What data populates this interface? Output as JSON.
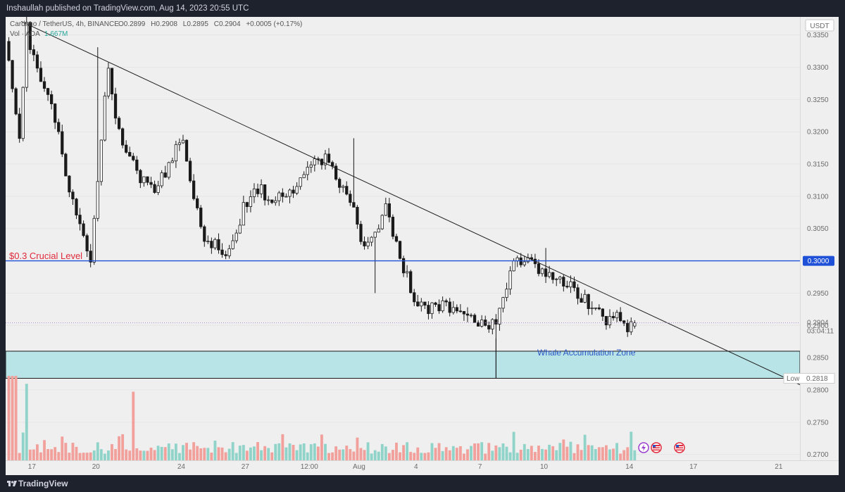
{
  "header": {
    "publish_line": "Inshaullah published on TradingView.com, Aug 14, 2023 20:55 UTC"
  },
  "footer": {
    "brand": "TradingView"
  },
  "legend": {
    "symbol": "Cardano / TetherUS, 4h, BINANCE",
    "o_label": "O",
    "o_value": "0.2899",
    "h_label": "H",
    "h_value": "0.2908",
    "l_label": "L",
    "l_value": "0.2895",
    "c_label": "C",
    "c_value": "0.2904",
    "change": "+0.0005 (+0.17%)",
    "volume_label": "Vol · ADA",
    "volume_value": "1.667M"
  },
  "currency": "USDT",
  "colors": {
    "up": "#ffffff",
    "down": "#1a1a1a",
    "vol_up": "#8fd3c9",
    "vol_down": "#f2a09b",
    "level": "#1e50d8",
    "level_text": "#e0293b",
    "zone_fill": "#b9e4e7",
    "zone_text": "#2a56c6",
    "trend": "#1f1f1f",
    "current": "#b08ccf"
  },
  "chart_data": {
    "type": "candlestick",
    "symbol": "Cardano / TetherUS",
    "timeframe": "4h",
    "exchange": "BINANCE",
    "ylim": [
      0.2668,
      0.3378
    ],
    "y_ticks": [
      "0.3350",
      "0.3300",
      "0.3250",
      "0.3200",
      "0.3150",
      "0.3100",
      "0.3050",
      "0.3000",
      "0.2950",
      "0.2900",
      "0.2850",
      "0.2800",
      "0.2750",
      "0.2700"
    ],
    "x_ticks": [
      "17",
      "20",
      "24",
      "27",
      "12:00",
      "Aug",
      "4",
      "7",
      "10",
      "14",
      "17",
      "21"
    ],
    "x_tick_bars": [
      7,
      25,
      49,
      67,
      85,
      99,
      115,
      133,
      151,
      175,
      193,
      217
    ],
    "close_path": [
      [
        0,
        0.332
      ],
      [
        3,
        0.318
      ],
      [
        5,
        0.336
      ],
      [
        8,
        0.329
      ],
      [
        12,
        0.325
      ],
      [
        16,
        0.313
      ],
      [
        20,
        0.306
      ],
      [
        23,
        0.2998
      ],
      [
        26,
        0.319
      ],
      [
        28,
        0.33
      ],
      [
        30,
        0.323
      ],
      [
        33,
        0.317
      ],
      [
        37,
        0.313
      ],
      [
        41,
        0.311
      ],
      [
        44,
        0.314
      ],
      [
        47,
        0.317
      ],
      [
        49,
        0.318
      ],
      [
        52,
        0.31
      ],
      [
        55,
        0.304
      ],
      [
        59,
        0.302
      ],
      [
        62,
        0.301
      ],
      [
        66,
        0.308
      ],
      [
        70,
        0.311
      ],
      [
        74,
        0.31
      ],
      [
        78,
        0.311
      ],
      [
        82,
        0.312
      ],
      [
        86,
        0.315
      ],
      [
        90,
        0.316
      ],
      [
        93,
        0.312
      ],
      [
        96,
        0.31
      ],
      [
        98,
        0.305
      ],
      [
        100,
        0.302
      ],
      [
        103,
        0.305
      ],
      [
        106,
        0.308
      ],
      [
        108,
        0.304
      ],
      [
        111,
        0.299
      ],
      [
        114,
        0.294
      ],
      [
        118,
        0.2925
      ],
      [
        122,
        0.2935
      ],
      [
        125,
        0.292
      ],
      [
        129,
        0.2925
      ],
      [
        132,
        0.2905
      ],
      [
        134,
        0.29
      ],
      [
        137,
        0.291
      ],
      [
        139,
        0.295
      ],
      [
        142,
        0.299
      ],
      [
        146,
        0.301
      ],
      [
        149,
        0.299
      ],
      [
        152,
        0.2975
      ],
      [
        156,
        0.2965
      ],
      [
        159,
        0.2955
      ],
      [
        162,
        0.294
      ],
      [
        165,
        0.2925
      ],
      [
        168,
        0.291
      ],
      [
        170,
        0.292
      ],
      [
        172,
        0.2905
      ],
      [
        174,
        0.29
      ],
      [
        176,
        0.2904
      ]
    ],
    "last_bar": 176,
    "volume_ylim": [
      0,
      4
    ],
    "volume_unit": "M",
    "levels": [
      {
        "label": "$0.3 Crucial Level",
        "price": 0.3,
        "price_label": "0.3000"
      }
    ],
    "zones": [
      {
        "label": "Whale Accumulation Zone",
        "from": 0.2818,
        "to": 0.286
      }
    ],
    "trendline": {
      "from": [
        4,
        0.3371
      ],
      "to": [
        223,
        0.2808
      ]
    },
    "last_price": {
      "value": "0.2904",
      "countdown": "03:04:11"
    },
    "low_marker": {
      "label": "Low",
      "value": "0.2818",
      "bar": 137
    }
  }
}
